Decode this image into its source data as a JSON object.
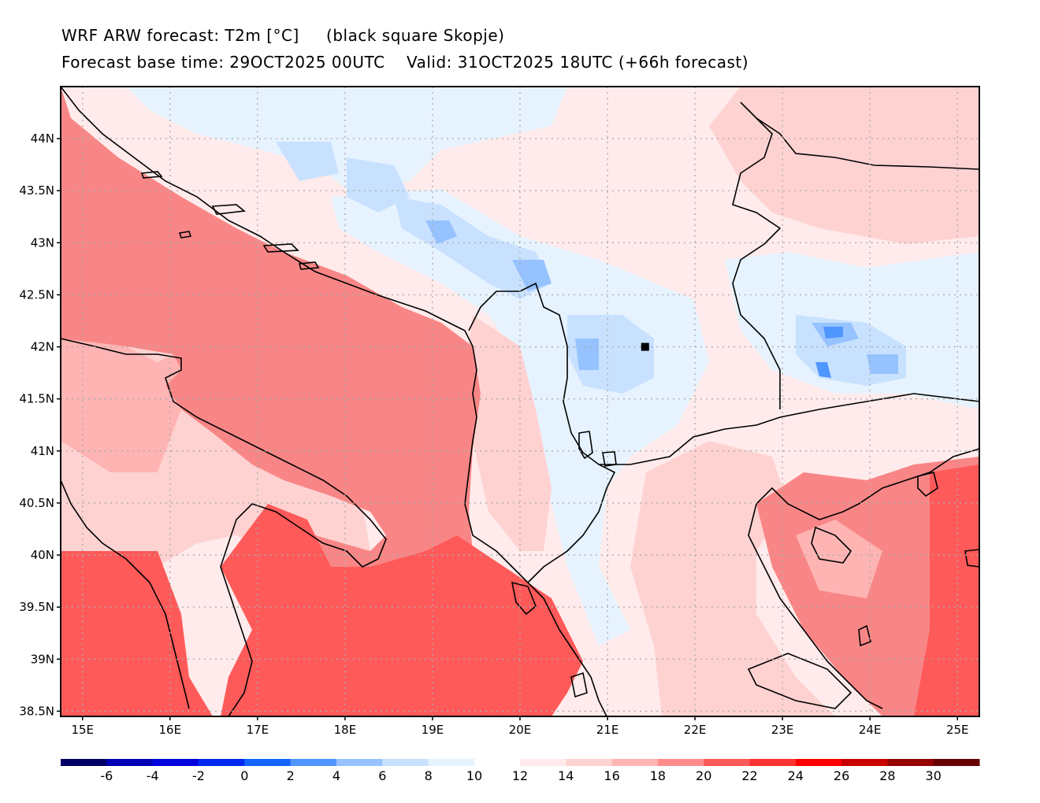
{
  "title": {
    "line1": "WRF ARW forecast: T2m [°C]     (black square Skopje)",
    "line2": "Forecast base time: 29OCT2025 00UTC    Valid: 31OCT2025 18UTC (+66h forecast)"
  },
  "map": {
    "lon_range": [
      14.75,
      25.25
    ],
    "lat_range": [
      38.45,
      44.5
    ],
    "lon_ticks": [
      15,
      16,
      17,
      18,
      19,
      20,
      21,
      22,
      23,
      24,
      25
    ],
    "lon_tick_labels": [
      "15E",
      "16E",
      "17E",
      "18E",
      "19E",
      "20E",
      "21E",
      "22E",
      "23E",
      "24E",
      "25E"
    ],
    "lat_ticks": [
      38.5,
      39,
      39.5,
      40,
      40.5,
      41,
      41.5,
      42,
      42.5,
      43,
      43.5,
      44
    ],
    "lat_tick_labels": [
      "38.5N",
      "39N",
      "39.5N",
      "40N",
      "40.5N",
      "41N",
      "41.5N",
      "42N",
      "42.5N",
      "43N",
      "43.5N",
      "44N"
    ],
    "marker": {
      "name": "Skopje",
      "lon": 21.43,
      "lat": 42.0
    }
  },
  "colorbar": {
    "cold_labels": [
      "-6",
      "-4",
      "-2",
      "0",
      "2",
      "4",
      "6",
      "8",
      "10"
    ],
    "warm_labels": [
      "12",
      "14",
      "16",
      "18",
      "20",
      "22",
      "24",
      "26",
      "28",
      "30"
    ],
    "cold_colors": [
      "#000064",
      "#0000b4",
      "#0000dc",
      "#0028f0",
      "#1464ff",
      "#5096ff",
      "#96c3ff",
      "#c8e1ff",
      "#e6f3ff"
    ],
    "warm_colors": [
      "#ffebeb",
      "#ffd2d2",
      "#ffb4b4",
      "#ff8c8c",
      "#ff5a5a",
      "#ff3232",
      "#ff0000",
      "#c80000",
      "#960000",
      "#640000"
    ]
  },
  "field_colors": {
    "sea_deep": "#ff5a5a",
    "sea": "#f98686",
    "coast": "#ffb4b4",
    "land_warm": "#ffd2d2",
    "land_mild": "#ffebeb",
    "land_cool": "#e6f3ff",
    "land_cold": "#c8e1ff",
    "land_coldest": "#96c3ff",
    "land_frost": "#5096ff"
  }
}
